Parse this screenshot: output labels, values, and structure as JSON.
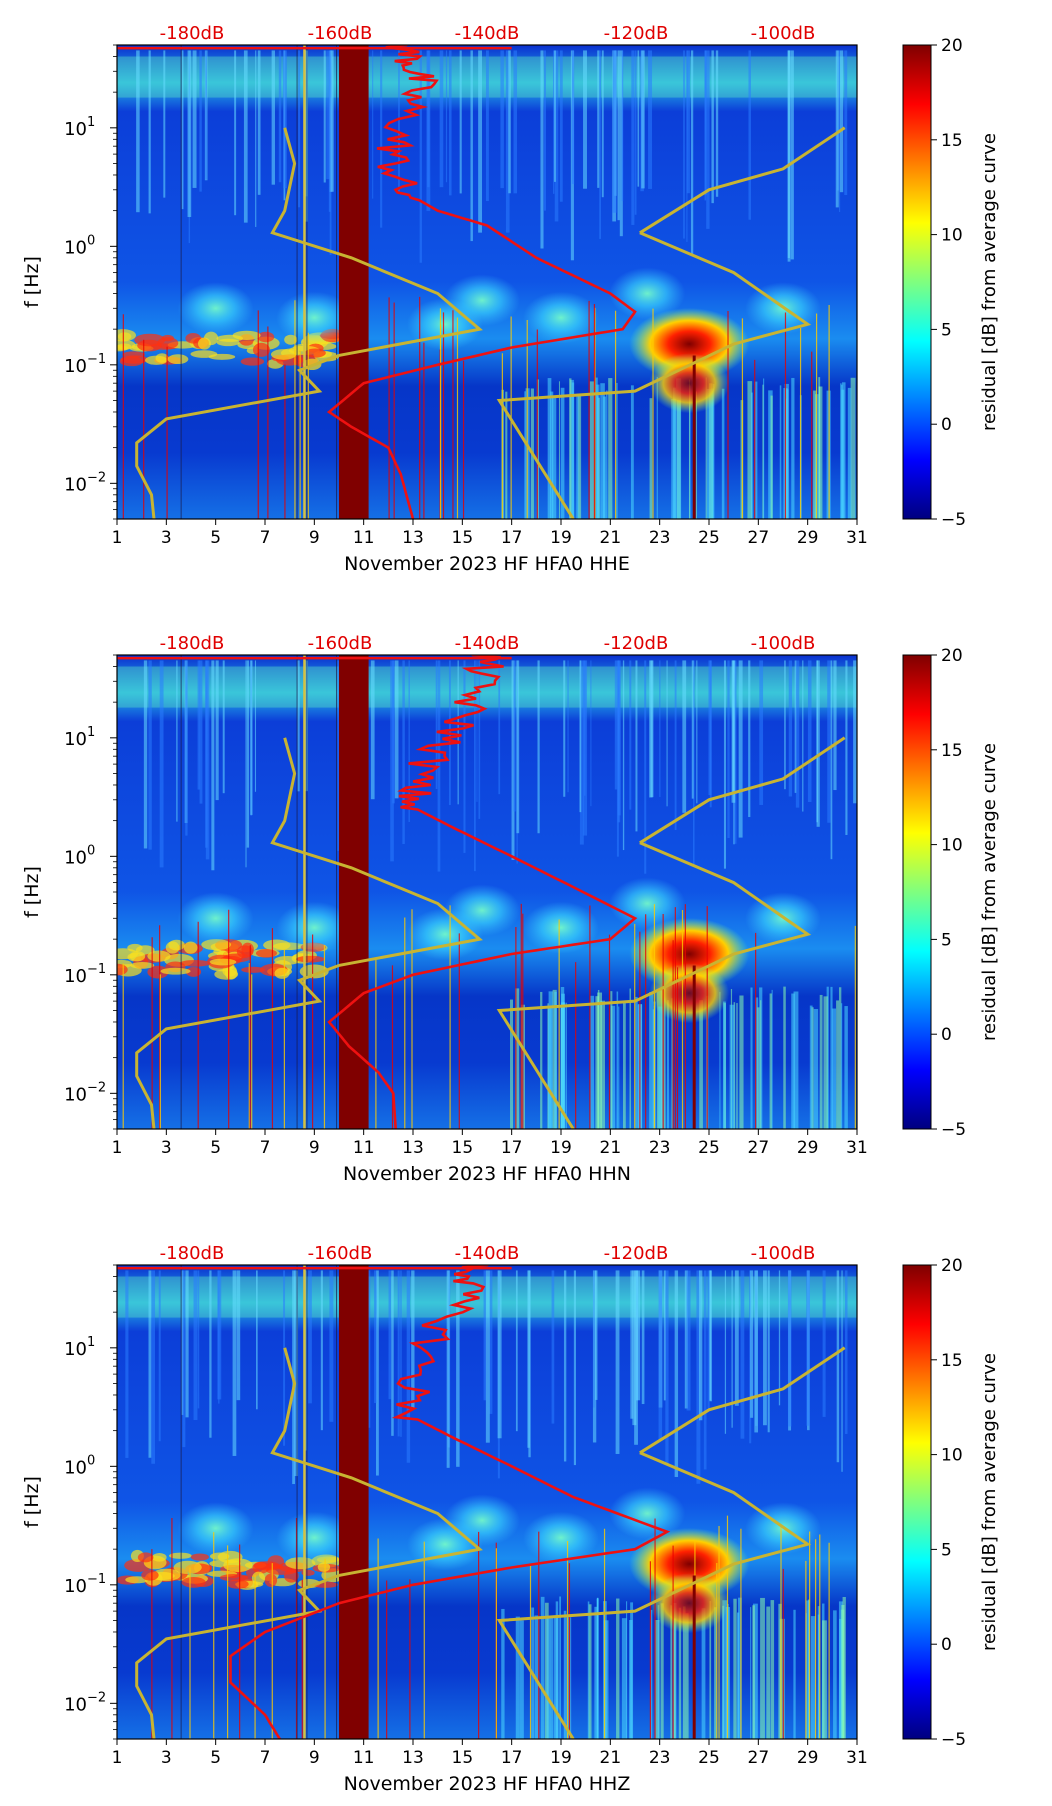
{
  "colors": {
    "top_axis_labels": "#e00000",
    "psd_curve": "#ee1111",
    "noise_model": "#c8b432",
    "band": "#800000",
    "jet": [
      "#00007f",
      "#0000ff",
      "#007fff",
      "#00ffff",
      "#7fff7f",
      "#ffff00",
      "#ff7f00",
      "#ff0000",
      "#7f0000"
    ]
  },
  "chart_data": [
    {
      "type": "heatmap",
      "channel": "HHE",
      "xlabel": "November 2023 HF HFA0  HHE",
      "ylabel": "f [Hz]",
      "colorbar_label": "residual [dB] from average curve",
      "x_ticks": [
        "1",
        "3",
        "5",
        "7",
        "9",
        "11",
        "13",
        "15",
        "17",
        "19",
        "21",
        "23",
        "25",
        "27",
        "29",
        "31"
      ],
      "x_range": [
        1,
        31
      ],
      "y_range": [
        0.005,
        50
      ],
      "y_ticks": [
        {
          "value": 0.01,
          "base": "10",
          "exp": "−2"
        },
        {
          "value": 0.1,
          "base": "10",
          "exp": "−1"
        },
        {
          "value": 1,
          "base": "10",
          "exp": "0"
        },
        {
          "value": 10,
          "base": "10",
          "exp": "1"
        }
      ],
      "top_axis_labels": [
        "-180dB",
        "-160dB",
        "-140dB",
        "-120dB",
        "-100dB"
      ],
      "colorbar_range": [
        -5,
        20
      ],
      "colorbar_ticks": [
        "20",
        "15",
        "10",
        "5",
        "0",
        "−5"
      ],
      "psd_curve": [
        [
          12.5,
          50
        ],
        [
          13,
          35
        ],
        [
          13.2,
          25
        ],
        [
          12.8,
          15
        ],
        [
          12.3,
          8
        ],
        [
          12.2,
          5
        ],
        [
          12.5,
          3
        ],
        [
          14,
          2
        ],
        [
          16,
          1.5
        ],
        [
          18,
          0.8
        ],
        [
          21,
          0.4
        ],
        [
          22,
          0.28
        ],
        [
          21.5,
          0.2
        ],
        [
          17,
          0.14
        ],
        [
          14,
          0.1
        ],
        [
          11,
          0.07
        ],
        [
          9.6,
          0.04
        ],
        [
          10.5,
          0.03
        ],
        [
          12,
          0.02
        ],
        [
          12.5,
          0.012
        ],
        [
          13,
          0.005
        ]
      ],
      "noise_model": [
        [
          7.8,
          10
        ],
        [
          8.2,
          5
        ],
        [
          7.8,
          2
        ],
        [
          7.3,
          1.3
        ],
        [
          10.5,
          0.8
        ],
        [
          14,
          0.4
        ],
        [
          15.7,
          0.2
        ],
        [
          10,
          0.12
        ],
        [
          8.4,
          0.09
        ],
        [
          9.2,
          0.06
        ],
        [
          3,
          0.035
        ],
        [
          1.8,
          0.022
        ],
        [
          1.8,
          0.014
        ],
        [
          2.4,
          0.008
        ],
        [
          2.5,
          0.005
        ]
      ],
      "noise_model_high": [
        [
          22.2,
          1.3
        ],
        [
          25,
          3
        ],
        [
          28,
          4.5
        ],
        [
          30.5,
          10
        ],
        [
          30.5,
          10
        ]
      ],
      "noise_model_high2": [
        [
          22.2,
          1.3
        ],
        [
          26,
          0.6
        ],
        [
          29,
          0.22
        ],
        [
          26,
          0.15
        ],
        [
          22,
          0.06
        ],
        [
          16.5,
          0.05
        ],
        [
          19.5,
          0.005
        ]
      ],
      "band_days": [
        10,
        11.2
      ]
    },
    {
      "type": "heatmap",
      "channel": "HHN",
      "xlabel": "November 2023 HF HFA0  HHN",
      "ylabel": "f [Hz]",
      "colorbar_label": "residual [dB] from average curve",
      "x_ticks": [
        "1",
        "3",
        "5",
        "7",
        "9",
        "11",
        "13",
        "15",
        "17",
        "19",
        "21",
        "23",
        "25",
        "27",
        "29",
        "31"
      ],
      "x_range": [
        1,
        31
      ],
      "y_range": [
        0.005,
        50
      ],
      "y_ticks": [
        {
          "value": 0.01,
          "base": "10",
          "exp": "−2"
        },
        {
          "value": 0.1,
          "base": "10",
          "exp": "−1"
        },
        {
          "value": 1,
          "base": "10",
          "exp": "0"
        },
        {
          "value": 10,
          "base": "10",
          "exp": "1"
        }
      ],
      "top_axis_labels": [
        "-180dB",
        "-160dB",
        "-140dB",
        "-120dB",
        "-100dB"
      ],
      "colorbar_range": [
        -5,
        20
      ],
      "colorbar_ticks": [
        "20",
        "15",
        "10",
        "5",
        "0",
        "−5"
      ],
      "psd_curve": [
        [
          16,
          50
        ],
        [
          15.8,
          35
        ],
        [
          15.3,
          20
        ],
        [
          14.8,
          12
        ],
        [
          13.8,
          7
        ],
        [
          13,
          4
        ],
        [
          13,
          2.6
        ],
        [
          14.5,
          1.8
        ],
        [
          17,
          1
        ],
        [
          19.5,
          0.55
        ],
        [
          22,
          0.3
        ],
        [
          21,
          0.2
        ],
        [
          17,
          0.15
        ],
        [
          13,
          0.1
        ],
        [
          11,
          0.07
        ],
        [
          9.6,
          0.04
        ],
        [
          10.4,
          0.025
        ],
        [
          11.6,
          0.015
        ],
        [
          12.2,
          0.01
        ],
        [
          12.3,
          0.005
        ]
      ],
      "noise_model": [
        [
          7.8,
          10
        ],
        [
          8.2,
          5
        ],
        [
          7.8,
          2
        ],
        [
          7.3,
          1.3
        ],
        [
          10.5,
          0.8
        ],
        [
          14,
          0.4
        ],
        [
          15.7,
          0.2
        ],
        [
          10,
          0.12
        ],
        [
          8.4,
          0.09
        ],
        [
          9.2,
          0.06
        ],
        [
          3,
          0.035
        ],
        [
          1.8,
          0.022
        ],
        [
          1.8,
          0.014
        ],
        [
          2.4,
          0.008
        ],
        [
          2.5,
          0.005
        ]
      ],
      "noise_model_high": [
        [
          22.2,
          1.3
        ],
        [
          25,
          3
        ],
        [
          28,
          4.5
        ],
        [
          30.5,
          10
        ],
        [
          30.5,
          10
        ]
      ],
      "noise_model_high2": [
        [
          22.2,
          1.3
        ],
        [
          26,
          0.6
        ],
        [
          29,
          0.22
        ],
        [
          26,
          0.15
        ],
        [
          22,
          0.06
        ],
        [
          16.5,
          0.05
        ],
        [
          19.5,
          0.005
        ]
      ],
      "band_days": [
        10,
        11.2
      ]
    },
    {
      "type": "heatmap",
      "channel": "HHZ",
      "xlabel": "November 2023 HF HFA0  HHZ",
      "ylabel": "f [Hz]",
      "colorbar_label": "residual [dB] from average curve",
      "x_ticks": [
        "1",
        "3",
        "5",
        "7",
        "9",
        "11",
        "13",
        "15",
        "17",
        "19",
        "21",
        "23",
        "25",
        "27",
        "29",
        "31"
      ],
      "x_range": [
        1,
        31
      ],
      "y_range": [
        0.005,
        50
      ],
      "y_ticks": [
        {
          "value": 0.01,
          "base": "10",
          "exp": "−2"
        },
        {
          "value": 0.1,
          "base": "10",
          "exp": "−1"
        },
        {
          "value": 1,
          "base": "10",
          "exp": "0"
        },
        {
          "value": 10,
          "base": "10",
          "exp": "1"
        }
      ],
      "top_axis_labels": [
        "-180dB",
        "-160dB",
        "-140dB",
        "-120dB",
        "-100dB"
      ],
      "colorbar_range": [
        -5,
        20
      ],
      "colorbar_ticks": [
        "20",
        "15",
        "10",
        "5",
        "0",
        "−5"
      ],
      "psd_curve": [
        [
          15.5,
          50
        ],
        [
          15.3,
          35
        ],
        [
          14.5,
          20
        ],
        [
          13.6,
          10
        ],
        [
          13,
          5
        ],
        [
          13,
          2.6
        ],
        [
          14.5,
          1.8
        ],
        [
          17,
          1
        ],
        [
          19.5,
          0.55
        ],
        [
          23.3,
          0.28
        ],
        [
          22,
          0.2
        ],
        [
          17,
          0.14
        ],
        [
          13,
          0.1
        ],
        [
          10,
          0.07
        ],
        [
          7,
          0.04
        ],
        [
          5.6,
          0.025
        ],
        [
          5.6,
          0.015
        ],
        [
          7,
          0.008
        ],
        [
          7.6,
          0.005
        ]
      ],
      "noise_model": [
        [
          7.8,
          10
        ],
        [
          8.2,
          5
        ],
        [
          7.8,
          2
        ],
        [
          7.3,
          1.3
        ],
        [
          10.5,
          0.8
        ],
        [
          14,
          0.4
        ],
        [
          15.7,
          0.2
        ],
        [
          10,
          0.12
        ],
        [
          8.4,
          0.09
        ],
        [
          9.2,
          0.06
        ],
        [
          3,
          0.035
        ],
        [
          1.8,
          0.022
        ],
        [
          1.8,
          0.014
        ],
        [
          2.4,
          0.008
        ],
        [
          2.5,
          0.005
        ]
      ],
      "noise_model_high": [
        [
          22.2,
          1.3
        ],
        [
          25,
          3
        ],
        [
          28,
          4.5
        ],
        [
          30.5,
          10
        ],
        [
          30.5,
          10
        ]
      ],
      "noise_model_high2": [
        [
          22.2,
          1.3
        ],
        [
          26,
          0.6
        ],
        [
          29,
          0.22
        ],
        [
          26,
          0.15
        ],
        [
          22,
          0.06
        ],
        [
          16.5,
          0.05
        ],
        [
          19.5,
          0.005
        ]
      ],
      "band_days": [
        10,
        11.2
      ]
    }
  ]
}
